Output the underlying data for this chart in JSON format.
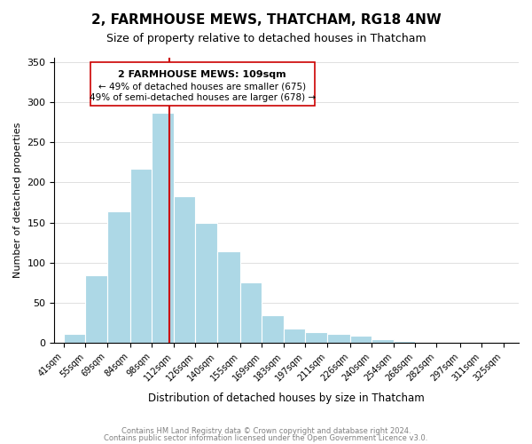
{
  "title": "2, FARMHOUSE MEWS, THATCHAM, RG18 4NW",
  "subtitle": "Size of property relative to detached houses in Thatcham",
  "xlabel": "Distribution of detached houses by size in Thatcham",
  "ylabel": "Number of detached properties",
  "bar_edges": [
    41,
    55,
    69,
    84,
    98,
    112,
    126,
    140,
    155,
    169,
    183,
    197,
    211,
    226,
    240,
    254,
    268,
    282,
    297,
    311,
    325
  ],
  "bar_heights": [
    11,
    84,
    164,
    217,
    287,
    183,
    150,
    114,
    75,
    35,
    18,
    14,
    11,
    9,
    5,
    2,
    1,
    0,
    1,
    1
  ],
  "bar_color": "#add8e6",
  "bar_edge_color": "#add8e6",
  "highlight_color": "#c8e6fa",
  "vline_x": 109,
  "vline_color": "#cc0000",
  "annotation_title": "2 FARMHOUSE MEWS: 109sqm",
  "annotation_line1": "← 49% of detached houses are smaller (675)",
  "annotation_line2": "49% of semi-detached houses are larger (678) →",
  "annotation_box_color": "#ffffff",
  "annotation_box_edge": "#cc0000",
  "ylim": [
    0,
    355
  ],
  "yticks": [
    0,
    50,
    100,
    150,
    200,
    250,
    300,
    350
  ],
  "footer1": "Contains HM Land Registry data © Crown copyright and database right 2024.",
  "footer2": "Contains public sector information licensed under the Open Government Licence v3.0."
}
